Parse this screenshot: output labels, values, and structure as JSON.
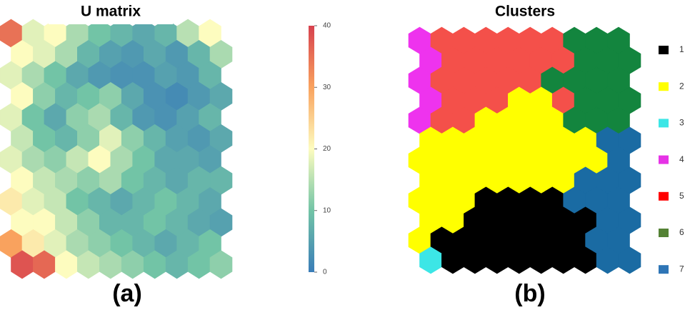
{
  "chart_data": [
    {
      "type": "heatmap",
      "title": "U matrix",
      "panel_label": "(a)",
      "colorscale": [
        "#3a7db8",
        "#72c4a6",
        "#fdfcbf",
        "#f9a25e",
        "#d7414e"
      ],
      "ylim": [
        0,
        40
      ],
      "yticks": [
        0,
        10,
        20,
        30,
        40
      ],
      "values": [
        [
          35,
          18,
          20,
          14,
          10,
          8,
          6,
          8,
          15,
          20
        ],
        [
          20,
          18,
          14,
          8,
          5,
          4,
          6,
          4,
          8,
          14
        ],
        [
          18,
          14,
          10,
          6,
          4,
          3,
          3,
          5,
          4,
          8
        ],
        [
          20,
          12,
          8,
          10,
          12,
          6,
          3,
          2,
          4,
          6
        ],
        [
          18,
          10,
          6,
          12,
          14,
          8,
          4,
          3,
          5,
          8
        ],
        [
          16,
          10,
          8,
          12,
          18,
          12,
          8,
          5,
          4,
          6
        ],
        [
          18,
          14,
          12,
          16,
          20,
          14,
          10,
          6,
          6,
          5
        ],
        [
          20,
          16,
          14,
          12,
          14,
          10,
          8,
          6,
          8,
          8
        ],
        [
          22,
          18,
          16,
          10,
          8,
          6,
          8,
          10,
          8,
          6
        ],
        [
          20,
          20,
          16,
          12,
          8,
          8,
          10,
          8,
          6,
          5
        ],
        [
          30,
          22,
          18,
          14,
          12,
          10,
          8,
          6,
          8,
          10
        ],
        [
          38,
          36,
          20,
          16,
          14,
          12,
          10,
          8,
          10,
          12
        ]
      ]
    },
    {
      "type": "cluster-map",
      "title": "Clusters",
      "panel_label": "(b)",
      "clusters": [
        {
          "label": "1",
          "color": "#000000",
          "map_color": "#000000"
        },
        {
          "label": "2",
          "color": "#ffff00",
          "map_color": "#ffff00"
        },
        {
          "label": "3",
          "color": "#3ce6e6",
          "map_color": "#3ce6e6"
        },
        {
          "label": "4",
          "color": "#e633e6",
          "map_color": "#ee33ee"
        },
        {
          "label": "5",
          "color": "#ff0000",
          "map_color": "#f4504a"
        },
        {
          "label": "6",
          "color": "#548235",
          "map_color": "#13853e"
        },
        {
          "label": "7",
          "color": "#2e75b6",
          "map_color": "#1a6ba3"
        }
      ],
      "values": [
        [
          4,
          5,
          5,
          5,
          5,
          5,
          5,
          6,
          6,
          6
        ],
        [
          4,
          5,
          5,
          5,
          5,
          5,
          5,
          6,
          6,
          6
        ],
        [
          4,
          5,
          5,
          5,
          5,
          5,
          6,
          6,
          6,
          6
        ],
        [
          4,
          5,
          5,
          5,
          2,
          2,
          5,
          6,
          6,
          6
        ],
        [
          4,
          5,
          5,
          2,
          2,
          2,
          2,
          6,
          6,
          6
        ],
        [
          2,
          2,
          2,
          2,
          2,
          2,
          2,
          2,
          7,
          7
        ],
        [
          2,
          2,
          2,
          2,
          2,
          2,
          2,
          2,
          2,
          7
        ],
        [
          2,
          2,
          2,
          2,
          2,
          2,
          2,
          7,
          7,
          7
        ],
        [
          2,
          2,
          2,
          1,
          1,
          1,
          1,
          7,
          7,
          7
        ],
        [
          2,
          2,
          1,
          1,
          1,
          1,
          1,
          1,
          7,
          7
        ],
        [
          2,
          1,
          1,
          1,
          1,
          1,
          1,
          1,
          7,
          7
        ],
        [
          3,
          1,
          1,
          1,
          1,
          1,
          1,
          1,
          7,
          7
        ]
      ]
    }
  ]
}
